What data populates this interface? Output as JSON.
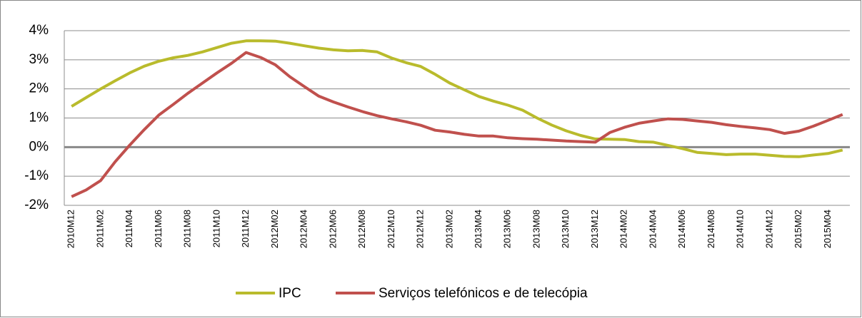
{
  "chart_data": {
    "type": "line",
    "categories": [
      "2010M12",
      null,
      "2011M02",
      null,
      "2011M04",
      null,
      "2011M06",
      null,
      "2011M08",
      null,
      "2011M10",
      null,
      "2011M12",
      null,
      "2012M02",
      null,
      "2012M04",
      null,
      "2012M06",
      null,
      "2012M08",
      null,
      "2012M10",
      null,
      "2012M12",
      null,
      "2013M02",
      null,
      "2013M04",
      null,
      "2013M06",
      null,
      "2013M08",
      null,
      "2013M10",
      null,
      "2013M12",
      null,
      "2014M02",
      null,
      "2014M04",
      null,
      "2014M06",
      null,
      "2014M08",
      null,
      "2014M10",
      null,
      "2014M12",
      null,
      "2015M02",
      null,
      "2015M04",
      null
    ],
    "series": [
      {
        "name": "IPC",
        "color": "#b9bb2c",
        "values": [
          1.4,
          1.7,
          2.0,
          2.28,
          2.55,
          2.78,
          2.95,
          3.07,
          3.15,
          3.27,
          3.42,
          3.57,
          3.65,
          3.65,
          3.64,
          3.57,
          3.48,
          3.4,
          3.34,
          3.31,
          3.32,
          3.27,
          3.06,
          2.9,
          2.77,
          2.5,
          2.2,
          1.97,
          1.74,
          1.58,
          1.44,
          1.27,
          1.0,
          0.76,
          0.56,
          0.4,
          0.28,
          0.27,
          0.26,
          0.19,
          0.17,
          0.06,
          -0.05,
          -0.18,
          -0.22,
          -0.26,
          -0.24,
          -0.24,
          -0.28,
          -0.32,
          -0.33,
          -0.27,
          -0.22,
          -0.1
        ]
      },
      {
        "name": "Serviços telefónicos e de telecópia",
        "color": "#c0504d",
        "values": [
          -1.7,
          -1.47,
          -1.15,
          -0.5,
          0.07,
          0.6,
          1.1,
          1.47,
          1.85,
          2.2,
          2.55,
          2.88,
          3.25,
          3.08,
          2.83,
          2.42,
          2.08,
          1.75,
          1.55,
          1.38,
          1.22,
          1.08,
          0.97,
          0.87,
          0.75,
          0.58,
          0.52,
          0.44,
          0.38,
          0.38,
          0.32,
          0.29,
          0.27,
          0.24,
          0.21,
          0.19,
          0.17,
          0.5,
          0.68,
          0.82,
          0.9,
          0.97,
          0.95,
          0.9,
          0.85,
          0.77,
          0.71,
          0.66,
          0.6,
          0.47,
          0.55,
          0.72,
          0.92,
          1.12
        ]
      }
    ],
    "ylim": [
      -2,
      4
    ],
    "yticks": [
      {
        "value": -2,
        "label": "-2%"
      },
      {
        "value": -1,
        "label": "-1%"
      },
      {
        "value": 0,
        "label": "0%"
      },
      {
        "value": 1,
        "label": "1%"
      },
      {
        "value": 2,
        "label": "2%"
      },
      {
        "value": 3,
        "label": "3%"
      },
      {
        "value": 4,
        "label": "4%"
      }
    ],
    "grid": true,
    "legend": "bottom"
  }
}
